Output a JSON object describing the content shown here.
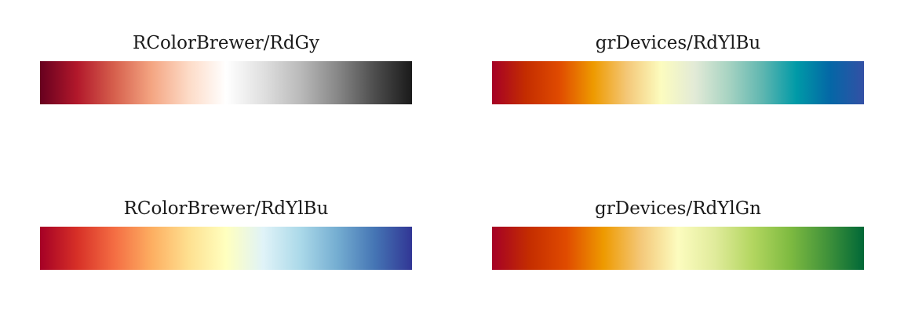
{
  "chart_data": [
    {
      "type": "colorbar",
      "title": "RColorBrewer/RdGy",
      "colors": [
        "#67001f",
        "#b2182b",
        "#d6604d",
        "#f4a582",
        "#fddbc7",
        "#ffffff",
        "#e0e0e0",
        "#bababa",
        "#878787",
        "#4d4d4d",
        "#1a1a1a"
      ]
    },
    {
      "type": "colorbar",
      "title": "grDevices/RdYlBu",
      "colors": [
        "#a50026",
        "#c42d00",
        "#e04b00",
        "#ee9a00",
        "#f4c879",
        "#fcfcbf",
        "#e2ead7",
        "#a7d3c2",
        "#5fb6b0",
        "#009aa7",
        "#0467a6",
        "#3350a5"
      ]
    },
    {
      "type": "colorbar",
      "title": "RColorBrewer/RdYlBu",
      "colors": [
        "#a50026",
        "#d73027",
        "#f46d43",
        "#fdae61",
        "#fee090",
        "#ffffbf",
        "#e0f3f8",
        "#abd9e9",
        "#74add1",
        "#4575b4",
        "#313695"
      ]
    },
    {
      "type": "colorbar",
      "title": "grDevices/RdYlGn",
      "colors": [
        "#a50026",
        "#c42d00",
        "#e04b00",
        "#ee9a00",
        "#f4c879",
        "#fcfcbf",
        "#e0eb9b",
        "#b3d660",
        "#7fbb41",
        "#42933a",
        "#006837"
      ]
    }
  ]
}
